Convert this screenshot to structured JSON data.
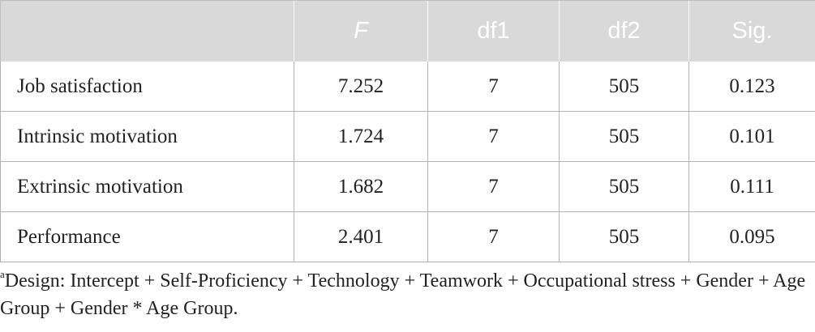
{
  "table": {
    "headers": [
      "",
      "F",
      "df1",
      "df2",
      "Sig."
    ],
    "rows": [
      [
        "Job satisfaction",
        "7.252",
        "7",
        "505",
        "0.123"
      ],
      [
        "Intrinsic motivation",
        "1.724",
        "7",
        "505",
        "0.101"
      ],
      [
        "Extrinsic motivation",
        "1.682",
        "7",
        "505",
        "0.111"
      ],
      [
        "Performance",
        "2.401",
        "7",
        "505",
        "0.095"
      ]
    ]
  },
  "footnote": {
    "marker": "a",
    "text": "Design: Intercept + Self-Proficiency + Technology + Teamwork + Occupational stress + Gender + Age Group + Gender * Age Group."
  },
  "colors": {
    "header_bg": "#d9d9d9",
    "header_text": "#ffffff",
    "border": "#b3b3b3"
  }
}
